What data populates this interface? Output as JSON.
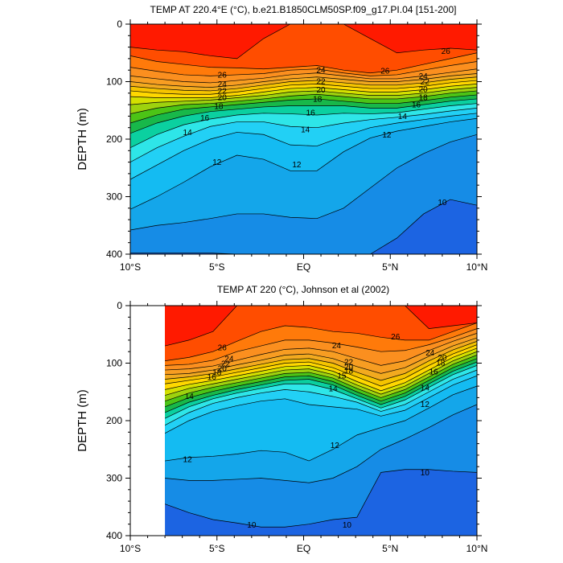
{
  "chart_data": [
    {
      "type": "contour",
      "title": "TEMP AT 220.4°E (°C), b.e21.B1850CLM50SP.f09_g17.PI.04 [151-200]",
      "ylabel": "DEPTH (m)",
      "xlabel": "",
      "xlim": [
        -10,
        10
      ],
      "ylim": [
        400,
        0
      ],
      "xticks": [
        -10,
        -5,
        0,
        5,
        10
      ],
      "xtick_labels": [
        "10°S",
        "5°S",
        "EQ",
        "5°N",
        "10°N"
      ],
      "yticks": [
        0,
        100,
        200,
        300,
        400
      ],
      "ytick_labels": [
        "0",
        "100",
        "200",
        "300",
        "400"
      ],
      "data_x_start": -10,
      "levels_fill": [
        9,
        10,
        11,
        12,
        13,
        14,
        15,
        16,
        17,
        18,
        19,
        20,
        21,
        22,
        23,
        24,
        25,
        26,
        27
      ],
      "isotherm_depths": [
        {
          "temp": 27,
          "depth": [
            40,
            45,
            48,
            55,
            60,
            25,
            0,
            0,
            0,
            25,
            50,
            45,
            42,
            45
          ]
        },
        {
          "temp": 26,
          "depth": [
            55,
            65,
            70,
            75,
            76,
            78,
            75,
            72,
            80,
            85,
            80,
            70,
            60,
            50
          ]
        },
        {
          "temp": 25,
          "depth": [
            75,
            82,
            88,
            90,
            88,
            86,
            80,
            78,
            85,
            90,
            88,
            80,
            72,
            65
          ]
        },
        {
          "temp": 24,
          "depth": [
            90,
            95,
            100,
            102,
            98,
            94,
            88,
            85,
            90,
            95,
            95,
            90,
            84,
            78
          ]
        },
        {
          "temp": 23,
          "depth": [
            100,
            105,
            108,
            110,
            106,
            100,
            95,
            92,
            96,
            100,
            100,
            96,
            90,
            86
          ]
        },
        {
          "temp": 22,
          "depth": [
            108,
            112,
            115,
            116,
            112,
            106,
            100,
            98,
            102,
            106,
            106,
            102,
            96,
            92
          ]
        },
        {
          "temp": 21,
          "depth": [
            116,
            120,
            122,
            122,
            118,
            112,
            106,
            104,
            108,
            112,
            112,
            108,
            102,
            98
          ]
        },
        {
          "temp": 20,
          "depth": [
            126,
            128,
            128,
            128,
            124,
            118,
            112,
            110,
            114,
            118,
            118,
            114,
            108,
            104
          ]
        },
        {
          "temp": 19,
          "depth": [
            140,
            136,
            134,
            132,
            128,
            124,
            118,
            116,
            120,
            124,
            124,
            120,
            114,
            110
          ]
        },
        {
          "temp": 18,
          "depth": [
            156,
            146,
            140,
            138,
            134,
            130,
            125,
            122,
            126,
            130,
            130,
            126,
            120,
            116
          ]
        },
        {
          "temp": 17,
          "depth": [
            172,
            158,
            148,
            144,
            140,
            136,
            132,
            130,
            134,
            138,
            138,
            133,
            127,
            123
          ]
        },
        {
          "temp": 16,
          "depth": [
            190,
            172,
            160,
            152,
            148,
            144,
            142,
            142,
            142,
            146,
            146,
            140,
            134,
            130
          ]
        },
        {
          "temp": 15,
          "depth": [
            215,
            192,
            175,
            165,
            158,
            155,
            156,
            158,
            155,
            156,
            154,
            148,
            142,
            138
          ]
        },
        {
          "temp": 14,
          "depth": [
            240,
            215,
            195,
            178,
            170,
            170,
            178,
            180,
            172,
            166,
            162,
            157,
            151,
            146
          ]
        },
        {
          "temp": 13,
          "depth": [
            270,
            245,
            220,
            200,
            188,
            192,
            210,
            212,
            195,
            180,
            172,
            166,
            160,
            155
          ]
        },
        {
          "temp": 12,
          "depth": [
            322,
            300,
            275,
            248,
            228,
            235,
            255,
            255,
            222,
            198,
            186,
            178,
            170,
            164
          ]
        },
        {
          "temp": 11,
          "depth": [
            358,
            350,
            345,
            338,
            330,
            330,
            336,
            338,
            320,
            285,
            250,
            225,
            205,
            192
          ]
        },
        {
          "temp": 10,
          "depth": [
            398,
            398,
            398,
            398,
            400,
            405,
            410,
            410,
            410,
            400,
            372,
            330,
            305,
            315
          ]
        }
      ],
      "contour_labels": [
        {
          "text": "26",
          "x": -4.7,
          "y": 88
        },
        {
          "text": "24",
          "x": -4.7,
          "y": 104
        },
        {
          "text": "22",
          "x": -4.7,
          "y": 116
        },
        {
          "text": "20",
          "x": -4.7,
          "y": 127
        },
        {
          "text": "18",
          "x": -4.9,
          "y": 143
        },
        {
          "text": "16",
          "x": -5.7,
          "y": 163
        },
        {
          "text": "14",
          "x": -6.7,
          "y": 188
        },
        {
          "text": "12",
          "x": -5.0,
          "y": 240
        },
        {
          "text": "24",
          "x": 1.0,
          "y": 80
        },
        {
          "text": "22",
          "x": 1.0,
          "y": 99
        },
        {
          "text": "20",
          "x": 1.0,
          "y": 114
        },
        {
          "text": "18",
          "x": 0.8,
          "y": 130
        },
        {
          "text": "16",
          "x": 0.4,
          "y": 154
        },
        {
          "text": "14",
          "x": 0.1,
          "y": 183
        },
        {
          "text": "12",
          "x": -0.4,
          "y": 244
        },
        {
          "text": "26",
          "x": 4.7,
          "y": 81
        },
        {
          "text": "12",
          "x": 4.8,
          "y": 192
        },
        {
          "text": "14",
          "x": 5.7,
          "y": 160
        },
        {
          "text": "16",
          "x": 6.5,
          "y": 140
        },
        {
          "text": "18",
          "x": 6.9,
          "y": 127
        },
        {
          "text": "20",
          "x": 6.9,
          "y": 113
        },
        {
          "text": "22",
          "x": 7.0,
          "y": 100
        },
        {
          "text": "24",
          "x": 6.9,
          "y": 90
        },
        {
          "text": "26",
          "x": 8.2,
          "y": 47
        },
        {
          "text": "10",
          "x": 8.0,
          "y": 310
        }
      ]
    },
    {
      "type": "contour",
      "title": "TEMP AT 220 (°C), Johnson et al (2002)",
      "ylabel": "DEPTH (m)",
      "xlabel": "",
      "xlim": [
        -10,
        10
      ],
      "ylim": [
        400,
        0
      ],
      "xticks": [
        -10,
        -5,
        0,
        5,
        10
      ],
      "xtick_labels": [
        "10°S",
        "5°S",
        "EQ",
        "5°N",
        "10°N"
      ],
      "yticks": [
        0,
        100,
        200,
        300,
        400
      ],
      "ytick_labels": [
        "0",
        "100",
        "200",
        "300",
        "400"
      ],
      "data_x_start": -8,
      "levels_fill": [
        9,
        10,
        11,
        12,
        13,
        14,
        15,
        16,
        17,
        18,
        19,
        20,
        21,
        22,
        23,
        24,
        25,
        26,
        27
      ],
      "isotherm_depths": [
        {
          "temp": 27,
          "depth": [
            70,
            60,
            45,
            0,
            0,
            0,
            0,
            0,
            0,
            0,
            0,
            40,
            35,
            30
          ]
        },
        {
          "temp": 26,
          "depth": [
            96,
            90,
            80,
            62,
            45,
            35,
            38,
            45,
            48,
            55,
            60,
            60,
            45,
            30
          ]
        },
        {
          "temp": 25,
          "depth": [
            104,
            102,
            95,
            80,
            70,
            60,
            60,
            65,
            72,
            80,
            78,
            68,
            55,
            40
          ]
        },
        {
          "temp": 24,
          "depth": [
            112,
            110,
            105,
            95,
            85,
            76,
            74,
            80,
            92,
            104,
            96,
            78,
            62,
            48
          ]
        },
        {
          "temp": 23,
          "depth": [
            120,
            118,
            112,
            103,
            95,
            86,
            84,
            92,
            106,
            118,
            108,
            88,
            70,
            56
          ]
        },
        {
          "temp": 22,
          "depth": [
            128,
            124,
            118,
            110,
            102,
            94,
            92,
            100,
            116,
            130,
            118,
            96,
            77,
            62
          ]
        },
        {
          "temp": 21,
          "depth": [
            136,
            130,
            124,
            116,
            108,
            100,
            98,
            108,
            124,
            140,
            126,
            104,
            84,
            68
          ]
        },
        {
          "temp": 20,
          "depth": [
            146,
            137,
            130,
            122,
            114,
            106,
            104,
            114,
            132,
            148,
            134,
            112,
            90,
            74
          ]
        },
        {
          "temp": 19,
          "depth": [
            156,
            144,
            136,
            128,
            120,
            112,
            110,
            120,
            138,
            154,
            140,
            118,
            96,
            80
          ]
        },
        {
          "temp": 18,
          "depth": [
            166,
            152,
            142,
            134,
            126,
            118,
            116,
            126,
            144,
            160,
            146,
            124,
            102,
            86
          ]
        },
        {
          "temp": 17,
          "depth": [
            176,
            160,
            149,
            140,
            132,
            124,
            122,
            132,
            150,
            166,
            152,
            130,
            108,
            92
          ]
        },
        {
          "temp": 16,
          "depth": [
            186,
            168,
            156,
            146,
            138,
            130,
            128,
            138,
            156,
            172,
            158,
            136,
            114,
            98
          ]
        },
        {
          "temp": 15,
          "depth": [
            196,
            176,
            162,
            152,
            144,
            136,
            136,
            146,
            162,
            178,
            164,
            142,
            120,
            104
          ]
        },
        {
          "temp": 14,
          "depth": [
            208,
            186,
            170,
            160,
            152,
            146,
            150,
            158,
            168,
            184,
            172,
            150,
            128,
            112
          ]
        },
        {
          "temp": 13,
          "depth": [
            222,
            200,
            184,
            174,
            166,
            162,
            172,
            176,
            180,
            192,
            182,
            160,
            138,
            122
          ]
        },
        {
          "temp": 12,
          "depth": [
            270,
            264,
            262,
            258,
            252,
            255,
            270,
            250,
            225,
            212,
            200,
            178,
            155,
            140
          ]
        },
        {
          "temp": 11,
          "depth": [
            300,
            304,
            304,
            302,
            300,
            304,
            308,
            300,
            280,
            250,
            232,
            212,
            190,
            172
          ]
        },
        {
          "temp": 10,
          "depth": [
            345,
            360,
            372,
            378,
            385,
            385,
            380,
            372,
            368,
            290,
            285,
            285,
            288,
            290
          ]
        }
      ],
      "contour_labels": [
        {
          "text": "26",
          "x": -4.7,
          "y": 73
        },
        {
          "text": "24",
          "x": -4.3,
          "y": 92
        },
        {
          "text": "22",
          "x": -4.5,
          "y": 101
        },
        {
          "text": "20",
          "x": -4.7,
          "y": 109
        },
        {
          "text": "18",
          "x": -5.0,
          "y": 116
        },
        {
          "text": "16",
          "x": -5.3,
          "y": 124
        },
        {
          "text": "14",
          "x": -6.6,
          "y": 157
        },
        {
          "text": "12",
          "x": -6.7,
          "y": 267
        },
        {
          "text": "24",
          "x": 1.9,
          "y": 69
        },
        {
          "text": "22",
          "x": 2.6,
          "y": 98
        },
        {
          "text": "20",
          "x": 2.6,
          "y": 107
        },
        {
          "text": "18",
          "x": 2.6,
          "y": 113
        },
        {
          "text": "15",
          "x": 2.2,
          "y": 122
        },
        {
          "text": "14",
          "x": 1.7,
          "y": 144
        },
        {
          "text": "12",
          "x": 1.8,
          "y": 243
        },
        {
          "text": "26",
          "x": 5.3,
          "y": 54
        },
        {
          "text": "14",
          "x": 7.0,
          "y": 143
        },
        {
          "text": "16",
          "x": 7.5,
          "y": 115
        },
        {
          "text": "18",
          "x": 7.9,
          "y": 99
        },
        {
          "text": "20",
          "x": 8.0,
          "y": 90
        },
        {
          "text": "24",
          "x": 7.3,
          "y": 82
        },
        {
          "text": "12",
          "x": 7.0,
          "y": 171
        },
        {
          "text": "10",
          "x": 7.0,
          "y": 290
        },
        {
          "text": "10",
          "x": -3.0,
          "y": 381
        },
        {
          "text": "10",
          "x": 2.5,
          "y": 381
        }
      ]
    }
  ]
}
